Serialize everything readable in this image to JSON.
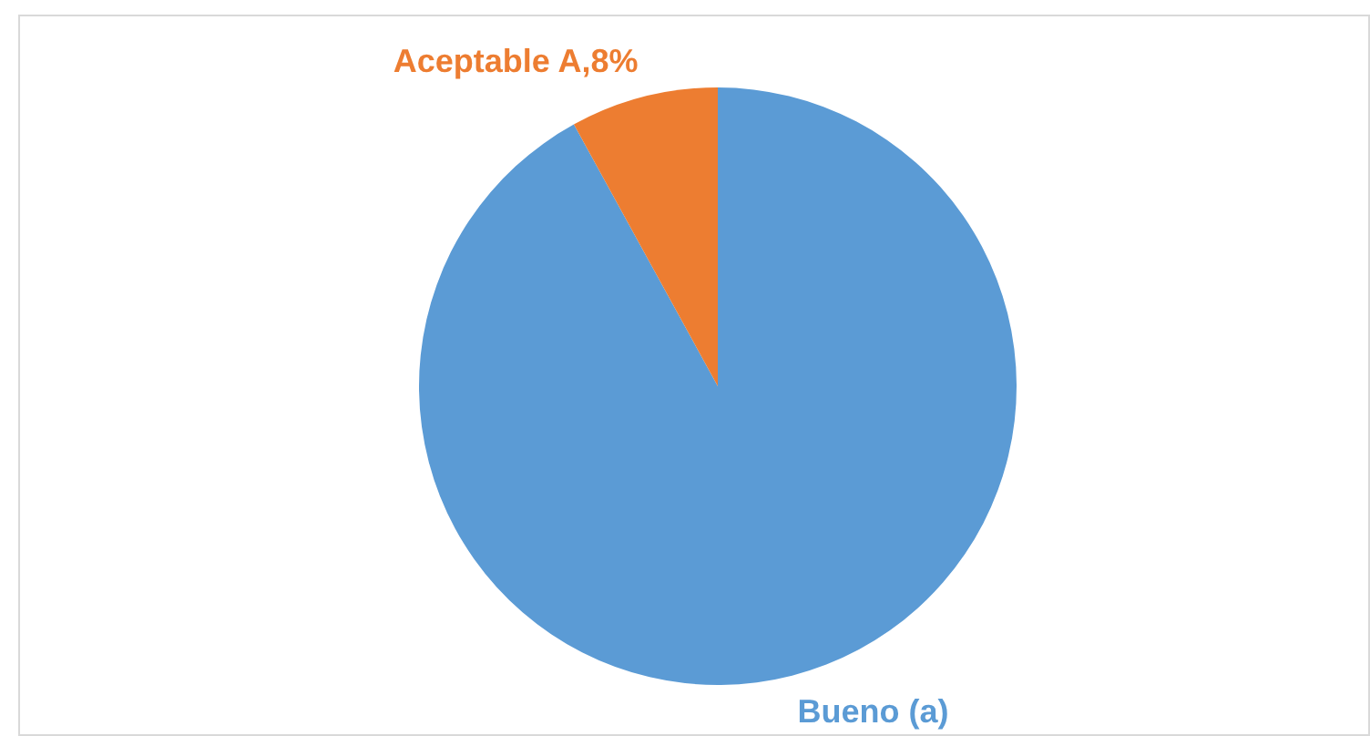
{
  "chart_data": {
    "type": "pie",
    "categories": [
      "Bueno (a)",
      "Aceptable A"
    ],
    "values": [
      92,
      8
    ],
    "colors": [
      "#5b9bd5",
      "#ed7d31"
    ],
    "value_labels": [
      null,
      "8%"
    ]
  }
}
